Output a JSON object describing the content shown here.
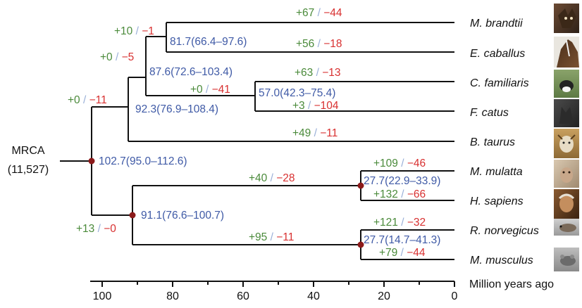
{
  "colors": {
    "gain": "#4a8a3a",
    "loss": "#d83030",
    "slash": "#9ab0d8",
    "time": "#3f5aa6",
    "node": "#8b1a1a",
    "line": "#111111"
  },
  "root": {
    "line1": "MRCA",
    "line2": "(11,527)"
  },
  "axis": {
    "title": "Million years ago",
    "ticks": [
      "100",
      "80",
      "60",
      "40",
      "20",
      "0"
    ]
  },
  "taxa": [
    {
      "name": "M. brandtii",
      "photo": "bat-photo",
      "gain": "+67",
      "loss": "−44"
    },
    {
      "name": "E. caballus",
      "photo": "horse-photo",
      "gain": "+56",
      "loss": "−18"
    },
    {
      "name": "C. familiaris",
      "photo": "dog-photo",
      "gain": "+63",
      "loss": "−13"
    },
    {
      "name": "F. catus",
      "photo": "cat-photo",
      "gain": "+3",
      "loss": "−104"
    },
    {
      "name": "B. taurus",
      "photo": "cow-photo",
      "gain": "+49",
      "loss": "−11"
    },
    {
      "name": "M. mulatta",
      "photo": "monkey-photo",
      "gain": "+109",
      "loss": "−46"
    },
    {
      "name": "H. sapiens",
      "photo": "human-photo",
      "gain": "+132",
      "loss": "−66"
    },
    {
      "name": "R. norvegicus",
      "photo": "rat-photo",
      "gain": "+121",
      "loss": "−32"
    },
    {
      "name": "M. musculus",
      "photo": "mouse-photo",
      "gain": "+79",
      "loss": "−44"
    }
  ],
  "internal_branches": {
    "bat_horse": {
      "gain": "+10",
      "loss": "−1"
    },
    "pegasoferae": {
      "gain": "+0",
      "loss": "−5"
    },
    "carnivora": {
      "gain": "+0",
      "loss": "−41"
    },
    "laurasiatheria": {
      "gain": "+0",
      "loss": "−11"
    },
    "primates": {
      "gain": "+40",
      "loss": "−28"
    },
    "rodents": {
      "gain": "+95",
      "loss": "−11"
    },
    "euarchontoglires": {
      "gain": "+13",
      "loss": "−0"
    }
  },
  "node_ages": {
    "bat_horse": "81.7(66.4–97.6)",
    "pegasoferae": "87.6(72.6–103.4)",
    "carnivora": "57.0(42.3–75.4)",
    "laurasiatheria": "92.3(76.9–108.4)",
    "root": "102.7(95.0–112.6)",
    "euarchontoglires": "91.1(76.6–100.7)",
    "primates": "27.7(22.9–33.9)",
    "rodents": "27.7(14.7–41.3)"
  }
}
